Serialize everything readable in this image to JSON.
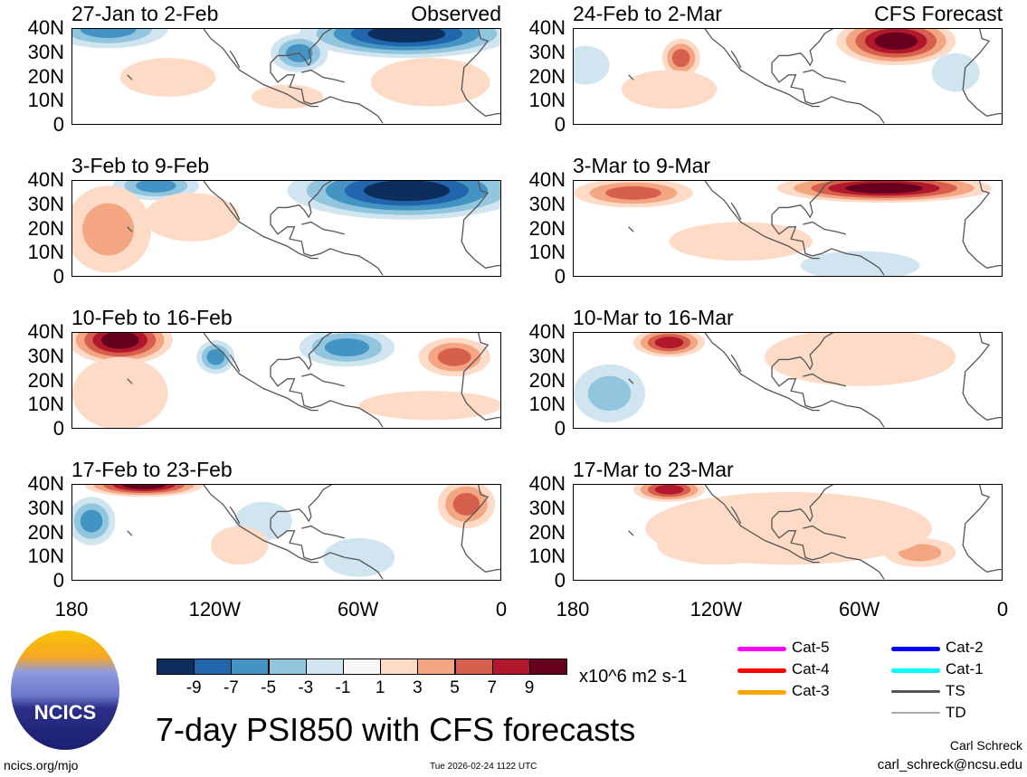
{
  "title": "7-day PSI850 with CFS forecasts",
  "footer": {
    "url": "ncics.org/mjo",
    "timestamp": "Tue 2026-02-24 1122 UTC",
    "author": "Carl Schreck",
    "email": "carl_schreck@ncsu.edu"
  },
  "logo_text": "NCICS",
  "lat_labels": [
    "40N",
    "30N",
    "20N",
    "10N",
    "0"
  ],
  "lon_labels": [
    "180",
    "120W",
    "60W",
    "0"
  ],
  "colorbar": {
    "colors": [
      "#0b2e5c",
      "#2166ac",
      "#4393c3",
      "#92c5de",
      "#d1e5f0",
      "#f7f7f7",
      "#fddbc7",
      "#f4a582",
      "#d6604d",
      "#b2182b",
      "#67001f"
    ],
    "labels": [
      "-9",
      "-7",
      "-5",
      "-3",
      "-1",
      "1",
      "3",
      "5",
      "7",
      "9"
    ],
    "units": "x10^6 m2 s-1"
  },
  "storm_legend": [
    {
      "label": "Cat-5",
      "color": "#ff00ff"
    },
    {
      "label": "Cat-4",
      "color": "#ff0000"
    },
    {
      "label": "Cat-3",
      "color": "#ffa500"
    },
    {
      "label": "Cat-2",
      "color": "#0000ff"
    },
    {
      "label": "Cat-1",
      "color": "#00ffff"
    },
    {
      "label": "TS",
      "color": "#555555"
    },
    {
      "label": "TD",
      "color": "#aaaaaa"
    }
  ],
  "panels": [
    {
      "title": "27-Jan to 2-Feb",
      "tag": "Observed",
      "anomalies": [
        [
          -165,
          40,
          25,
          8,
          -5
        ],
        [
          -40,
          38,
          45,
          10,
          -9
        ],
        [
          -85,
          30,
          12,
          8,
          -5
        ],
        [
          -140,
          20,
          20,
          8,
          2
        ],
        [
          -30,
          18,
          25,
          10,
          2
        ],
        [
          -90,
          12,
          15,
          5,
          1
        ]
      ]
    },
    {
      "title": "3-Feb to 9-Feb",
      "tag": "",
      "anomalies": [
        [
          -145,
          38,
          18,
          6,
          -5
        ],
        [
          -40,
          36,
          50,
          12,
          -9
        ],
        [
          -165,
          20,
          18,
          18,
          3
        ],
        [
          -130,
          25,
          20,
          10,
          1
        ]
      ]
    },
    {
      "title": "10-Feb to 16-Feb",
      "tag": "",
      "anomalies": [
        [
          -160,
          37,
          22,
          10,
          9
        ],
        [
          -120,
          30,
          8,
          7,
          -5
        ],
        [
          -65,
          34,
          20,
          8,
          -5
        ],
        [
          -20,
          30,
          15,
          8,
          5
        ],
        [
          -160,
          15,
          20,
          15,
          2
        ],
        [
          -30,
          10,
          30,
          6,
          2
        ]
      ]
    },
    {
      "title": "17-Feb to 23-Feb",
      "tag": "",
      "anomalies": [
        [
          -150,
          40,
          25,
          5,
          9
        ],
        [
          -172,
          25,
          10,
          10,
          -5
        ],
        [
          -100,
          25,
          12,
          8,
          -2
        ],
        [
          -15,
          32,
          12,
          10,
          5
        ],
        [
          -110,
          15,
          12,
          8,
          2
        ],
        [
          -60,
          10,
          15,
          8,
          -2
        ]
      ]
    },
    {
      "title": "24-Feb to 2-Mar",
      "tag": "CFS Forecast",
      "anomalies": [
        [
          -45,
          35,
          25,
          10,
          9
        ],
        [
          -135,
          28,
          8,
          8,
          5
        ],
        [
          -140,
          15,
          20,
          8,
          2
        ],
        [
          -175,
          25,
          10,
          8,
          -2
        ],
        [
          -20,
          22,
          10,
          8,
          -2
        ]
      ]
    },
    {
      "title": "3-Mar to 9-Mar",
      "tag": "",
      "anomalies": [
        [
          -50,
          37,
          45,
          6,
          9
        ],
        [
          -155,
          35,
          25,
          6,
          5
        ],
        [
          -110,
          15,
          30,
          8,
          2
        ],
        [
          -60,
          5,
          25,
          6,
          -2
        ]
      ]
    },
    {
      "title": "10-Mar to 16-Mar",
      "tag": "",
      "anomalies": [
        [
          -140,
          36,
          15,
          6,
          7
        ],
        [
          -165,
          15,
          15,
          12,
          -3
        ],
        [
          -60,
          30,
          40,
          12,
          2
        ]
      ]
    },
    {
      "title": "17-Mar to 23-Mar",
      "tag": "",
      "anomalies": [
        [
          -140,
          38,
          15,
          5,
          7
        ],
        [
          -120,
          15,
          25,
          8,
          3
        ],
        [
          -35,
          12,
          15,
          6,
          3
        ],
        [
          -90,
          22,
          60,
          15,
          1
        ]
      ]
    }
  ]
}
